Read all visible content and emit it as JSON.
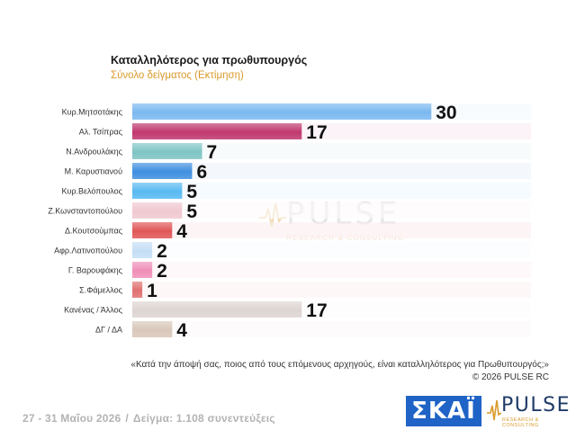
{
  "header": {
    "title": "Καταλληλότερος για πρωθυπουργός",
    "subtitle": "Σύνολο δείγματος (Εκτίμηση)"
  },
  "chart_data": {
    "type": "bar",
    "orientation": "horizontal",
    "categories": [
      "Κυρ.Μητσοτάκης",
      "Αλ. Τσίπρας",
      "Ν.Ανδρουλάκης",
      "Μ. Καρυστιανού",
      "Κυρ.Βελόπουλος",
      "Ζ.Κωνσταντοπούλου",
      "Δ.Κουτσούμπας",
      "Αφρ.Λατινοπούλου",
      "Γ. Βαρουφάκης",
      "Σ.Φάμελλος",
      "Κανένας / Άλλος",
      "ΔΓ / ΔΑ"
    ],
    "values": [
      30,
      17,
      7,
      6,
      5,
      5,
      4,
      2,
      2,
      1,
      17,
      4
    ],
    "bar_colors": [
      "#7ab8f0",
      "#c0386f",
      "#7fc4c4",
      "#3f8fe0",
      "#59b9f2",
      "#f0c8d0",
      "#e05757",
      "#c5def5",
      "#f08fb8",
      "#e07070",
      "#ddd5d2",
      "#d9c7b9"
    ],
    "xlim": [
      0,
      40
    ]
  },
  "watermark": {
    "word": "PULSE",
    "sub": "RESEARCH & CONSULTING"
  },
  "footer": {
    "question": "«Κατά την άποψή σας, ποιος από τους επόμενους αρχηγούς, είναι καταλληλότερος για Πρωθυπουργός;»",
    "copyright": "©  2026  PULSE RC",
    "dates": "27 - 31  Μαΐου 2026",
    "separator": "/",
    "sample": "Δείγμα:  1.108 συνεντεύξεις"
  },
  "logos": {
    "skai": "ΣΚΑΪ",
    "pulse_word": "PULSE",
    "pulse_sub": "RESEARCH & CONSULTING",
    "accent": "#d99a2b",
    "skai_color": "#1f63c6"
  }
}
